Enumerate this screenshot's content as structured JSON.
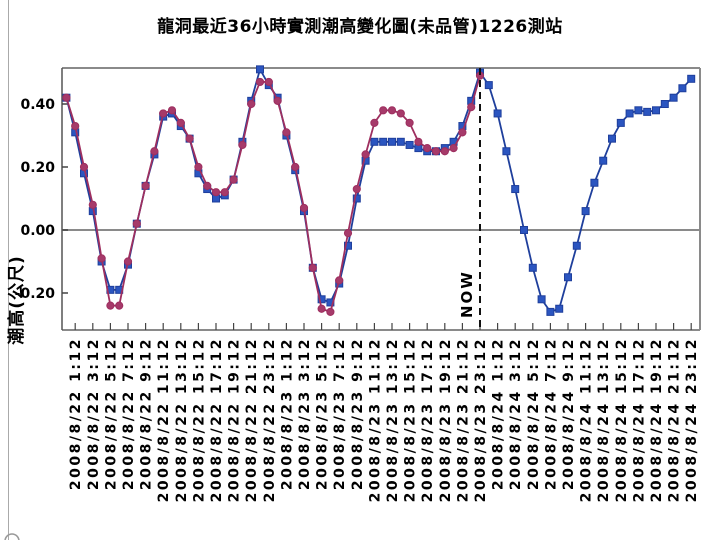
{
  "title": "龍洞最近36小時實測潮高變化圖(未品管)1226測站",
  "chart_data": {
    "type": "line",
    "title": "龍洞最近36小時實測潮高變化圖(未品管)1226測站",
    "xlabel": "",
    "ylabel": "潮高(公尺)",
    "ylim": [
      -0.3175,
      0.5143
    ],
    "xlim_hours": [
      -0.5,
      72
    ],
    "grid": "zero-line-only",
    "legend": "none",
    "yticks": [
      {
        "value": 0.4,
        "label": "0.40"
      },
      {
        "value": 0.2,
        "label": "0.20"
      },
      {
        "value": 0.0,
        "label": "0.00"
      },
      {
        "value": -0.2,
        "label": "-0.20"
      }
    ],
    "x_tick_hours_step": 2,
    "x_tick_labels": [
      "2008/8/22 1:12",
      "2008/8/22 3:12",
      "2008/8/22 5:12",
      "2008/8/22 7:12",
      "2008/8/22 9:12",
      "2008/8/22 11:12",
      "2008/8/22 13:12",
      "2008/8/22 15:12",
      "2008/8/22 17:12",
      "2008/8/22 19:12",
      "2008/8/22 21:12",
      "2008/8/22 23:12",
      "2008/8/23 1:12",
      "2008/8/23 3:12",
      "2008/8/23 5:12",
      "2008/8/23 7:12",
      "2008/8/23 9:12",
      "2008/8/23 11:12",
      "2008/8/23 13:12",
      "2008/8/23 15:12",
      "2008/8/23 17:12",
      "2008/8/23 19:12",
      "2008/8/23 21:12",
      "2008/8/23 23:12",
      "2008/8/24 1:12",
      "2008/8/24 3:12",
      "2008/8/24 5:12",
      "2008/8/24 7:12",
      "2008/8/24 9:12",
      "2008/8/24 11:12",
      "2008/8/24 13:12",
      "2008/8/24 15:12",
      "2008/8/24 17:12",
      "2008/8/24 19:12",
      "2008/8/24 21:12",
      "2008/8/24 23:12"
    ],
    "now_marker": {
      "label": "NOW",
      "hour": 47,
      "time": "2008/8/23 23:12"
    },
    "series": [
      {
        "id": "squares-blue",
        "marker": "square",
        "line_color": "#1f3f9c",
        "fill_color": "#2b55c0",
        "start_hour": 0,
        "values": [
          0.42,
          0.31,
          0.18,
          0.06,
          -0.1,
          -0.19,
          -0.19,
          -0.11,
          0.02,
          0.14,
          0.24,
          0.36,
          0.37,
          0.33,
          0.29,
          0.18,
          0.13,
          0.1,
          0.11,
          0.16,
          0.28,
          0.41,
          0.51,
          0.46,
          0.42,
          0.3,
          0.19,
          0.06,
          -0.12,
          -0.22,
          -0.23,
          -0.17,
          -0.05,
          0.1,
          0.22,
          0.28,
          0.28,
          0.28,
          0.28,
          0.27,
          0.26,
          0.25,
          0.25,
          0.26,
          0.28,
          0.33,
          0.41,
          0.5,
          0.46,
          0.37,
          0.25,
          0.13,
          0.0,
          -0.12,
          -0.22,
          -0.26,
          -0.25,
          -0.15,
          -0.05,
          0.06,
          0.15,
          0.22,
          0.29,
          0.34,
          0.37,
          0.38,
          0.375,
          0.38,
          0.4,
          0.42,
          0.45,
          0.48
        ]
      },
      {
        "id": "circles-dark-red",
        "marker": "circle",
        "line_color": "#9e2f5f",
        "fill_color": "#a63a6a",
        "start_hour": 0,
        "values": [
          0.42,
          0.33,
          0.2,
          0.08,
          -0.09,
          -0.24,
          -0.24,
          -0.1,
          0.02,
          0.14,
          0.25,
          0.37,
          0.38,
          0.34,
          0.29,
          0.2,
          0.14,
          0.12,
          0.12,
          0.16,
          0.27,
          0.4,
          0.47,
          0.47,
          0.41,
          0.31,
          0.2,
          0.07,
          -0.12,
          -0.25,
          -0.26,
          -0.16,
          -0.01,
          0.13,
          0.24,
          0.34,
          0.38,
          0.38,
          0.37,
          0.34,
          0.28,
          0.26,
          0.25,
          0.25,
          0.26,
          0.31,
          0.39,
          0.49
        ]
      }
    ],
    "colors": {
      "plot_border": "#8a8a8a",
      "zero_line": "#8a8a8a",
      "axis_tick": "#444444",
      "now_line": "#111111",
      "text": "#000000"
    }
  }
}
